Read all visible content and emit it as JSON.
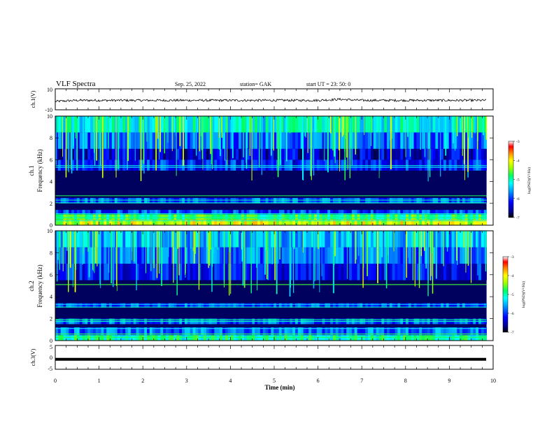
{
  "header": {
    "title": "VLF Spectra",
    "date": "Sep. 25, 2022",
    "station": "station= GAK",
    "start_ut": "start  UT  =   23: 50: 0"
  },
  "chart_data": [
    {
      "type": "line",
      "ylabel": "ch.1(V)",
      "ylim": [
        -10,
        10
      ],
      "yticks": [
        "10",
        "-10"
      ],
      "x_unit": "min",
      "x": [
        0,
        0.5,
        1,
        1.5,
        2,
        2.5,
        3,
        3.5,
        4,
        4.5,
        5,
        5.5,
        6,
        6.5,
        7,
        7.5,
        8,
        8.5,
        9,
        9.5,
        9.85
      ],
      "y": [
        -2,
        -1,
        -1,
        -1,
        -1,
        -1,
        -1,
        -1,
        -1,
        -1,
        -1,
        -1,
        -1,
        0,
        -1,
        -1,
        -1,
        -1,
        -1,
        -1,
        -1
      ]
    },
    {
      "type": "heatmap",
      "channel_label": "ch.1",
      "ylabel": "Frequency  (kHz)",
      "ylim": [
        0,
        10
      ],
      "yticks": [
        "0",
        "2",
        "4",
        "6",
        "8",
        "10"
      ],
      "x_extent_min": 9.85,
      "background_power": -6.8,
      "bands": [
        {
          "f_low": 0.0,
          "f_high": 0.5,
          "power": -4.2
        },
        {
          "f_low": 0.5,
          "f_high": 1.0,
          "power": -4.8
        },
        {
          "f_low": 1.0,
          "f_high": 1.4,
          "power": -6.0
        },
        {
          "f_low": 2.0,
          "f_high": 2.5,
          "power": -5.9
        },
        {
          "f_low": 5.0,
          "f_high": 6.0,
          "power": -6.1
        },
        {
          "f_low": 6.0,
          "f_high": 7.0,
          "power": -6.4
        },
        {
          "f_low": 7.0,
          "f_high": 8.5,
          "power": -5.8
        },
        {
          "f_low": 8.5,
          "f_high": 10.0,
          "power": -5.2
        }
      ],
      "lines_khz": [
        0.4,
        0.7,
        1.05,
        2.05,
        2.3,
        2.7,
        5.3,
        5.45
      ],
      "colorbar": {
        "label": "log(PSD)(V²/Hz)",
        "range": [
          -7,
          -3
        ],
        "ticks": [
          "-3",
          "-4",
          "-5",
          "-6",
          "-7"
        ]
      }
    },
    {
      "type": "heatmap",
      "channel_label": "ch.2",
      "ylabel": "Frequency  (kHz)",
      "ylim": [
        0,
        10
      ],
      "yticks": [
        "0",
        "2",
        "4",
        "6",
        "8",
        "10"
      ],
      "x_extent_min": 9.85,
      "background_power": -6.8,
      "bands": [
        {
          "f_low": 0.0,
          "f_high": 0.5,
          "power": -5.0
        },
        {
          "f_low": 0.5,
          "f_high": 1.2,
          "power": -5.8
        },
        {
          "f_low": 1.5,
          "f_high": 2.0,
          "power": -5.9
        },
        {
          "f_low": 3.0,
          "f_high": 3.4,
          "power": -6.0
        },
        {
          "f_low": 5.5,
          "f_high": 7.0,
          "power": -6.2
        },
        {
          "f_low": 7.0,
          "f_high": 8.5,
          "power": -5.8
        },
        {
          "f_low": 8.5,
          "f_high": 10.0,
          "power": -5.5
        }
      ],
      "lines_khz": [
        0.3,
        0.6,
        1.1,
        1.75,
        1.9,
        3.05,
        3.3,
        5.1
      ],
      "colorbar": {
        "label": "log(PSD)(V²/Hz)",
        "range": [
          -7,
          -3
        ],
        "ticks": [
          "-3",
          "-4",
          "-5",
          "-6",
          "-7"
        ]
      }
    },
    {
      "type": "line",
      "ylabel": "ch.3(V)",
      "ylim": [
        -5,
        5
      ],
      "yticks": [
        "5",
        "0",
        "-5"
      ],
      "x_unit": "min",
      "x": [
        0,
        9.85
      ],
      "y": [
        -0.8,
        -0.8
      ]
    }
  ],
  "xaxis": {
    "label": "Time  (min)",
    "ticks": [
      "0",
      "1",
      "2",
      "3",
      "4",
      "5",
      "6",
      "7",
      "8",
      "9",
      "10"
    ],
    "xlim": [
      0,
      10
    ]
  },
  "colors": {
    "background_spectrogram": "#000010",
    "trace": "#000000"
  }
}
